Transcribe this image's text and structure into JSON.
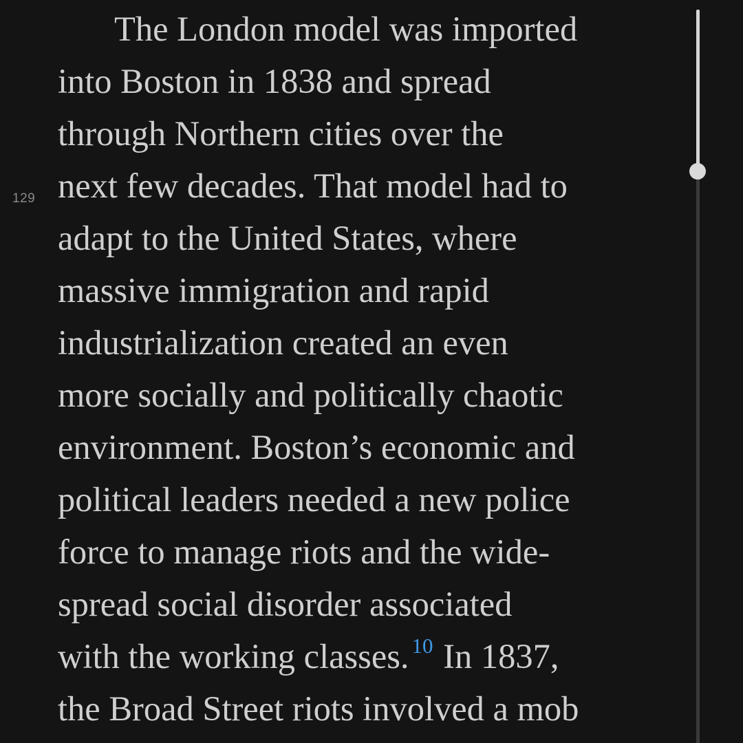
{
  "reader": {
    "page_number": "129",
    "scroll_progress": 0.22,
    "lines": [
      "The London model was imported",
      "into Boston in 1838 and spread",
      "through Northern cities over the",
      "next few decades. That model had to",
      "adapt to the United States, where",
      "massive immigration and rapid",
      "industrialization created an even",
      "more socially and politically chaotic",
      "environment. Boston’s economic and",
      "political leaders needed a new police",
      "force to manage riots and the wide-",
      "spread social disorder associated"
    ],
    "line13_before": "with the working classes.",
    "footnote": "10",
    "line13_after": "In 1837,",
    "line14": "the Broad Street riots involved a mob"
  }
}
